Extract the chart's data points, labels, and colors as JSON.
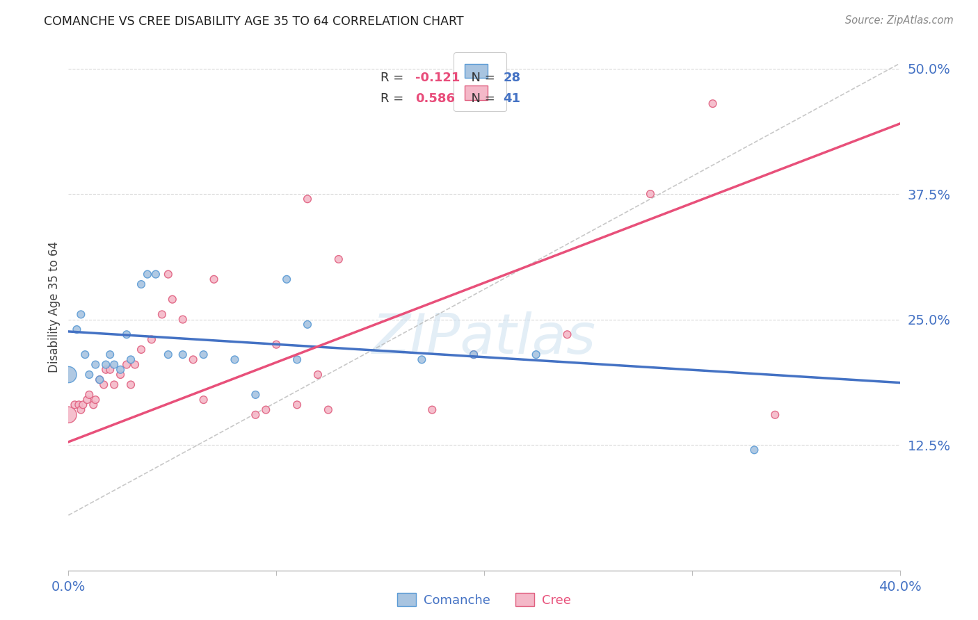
{
  "title": "COMANCHE VS CREE DISABILITY AGE 35 TO 64 CORRELATION CHART",
  "source": "Source: ZipAtlas.com",
  "ylabel_label": "Disability Age 35 to 64",
  "x_min": 0.0,
  "x_max": 0.4,
  "y_min": 0.0,
  "y_max": 0.525,
  "y_ticks": [
    0.125,
    0.25,
    0.375,
    0.5
  ],
  "y_tick_labels": [
    "12.5%",
    "25.0%",
    "37.5%",
    "50.0%"
  ],
  "comanche_color": "#a8c4e0",
  "comanche_edge_color": "#5b9bd5",
  "cree_color": "#f4b8c8",
  "cree_edge_color": "#e06080",
  "comanche_line_color": "#4472c4",
  "cree_line_color": "#e8507a",
  "diag_line_color": "#bbbbbb",
  "R_comanche": -0.121,
  "N_comanche": 28,
  "R_cree": 0.586,
  "N_cree": 41,
  "comanche_line_y0": 0.238,
  "comanche_line_y1": 0.187,
  "cree_line_y0": 0.128,
  "cree_line_y1": 0.445,
  "diag_line_x0": 0.0,
  "diag_line_y0": 0.055,
  "diag_line_x1": 0.4,
  "diag_line_y1": 0.505,
  "comanche_x": [
    0.0,
    0.004,
    0.006,
    0.008,
    0.01,
    0.013,
    0.015,
    0.018,
    0.02,
    0.022,
    0.025,
    0.028,
    0.03,
    0.035,
    0.038,
    0.042,
    0.048,
    0.055,
    0.065,
    0.08,
    0.09,
    0.105,
    0.11,
    0.115,
    0.17,
    0.195,
    0.225,
    0.33
  ],
  "comanche_y": [
    0.195,
    0.24,
    0.255,
    0.215,
    0.195,
    0.205,
    0.19,
    0.205,
    0.215,
    0.205,
    0.2,
    0.235,
    0.21,
    0.285,
    0.295,
    0.295,
    0.215,
    0.215,
    0.215,
    0.21,
    0.175,
    0.29,
    0.21,
    0.245,
    0.21,
    0.215,
    0.215,
    0.12
  ],
  "comanche_sizes": [
    280,
    60,
    60,
    60,
    60,
    60,
    60,
    60,
    60,
    60,
    60,
    60,
    60,
    60,
    60,
    60,
    60,
    60,
    60,
    60,
    60,
    60,
    60,
    60,
    60,
    60,
    60,
    60
  ],
  "cree_x": [
    0.0,
    0.003,
    0.005,
    0.006,
    0.007,
    0.009,
    0.01,
    0.012,
    0.013,
    0.015,
    0.017,
    0.018,
    0.02,
    0.022,
    0.025,
    0.028,
    0.03,
    0.032,
    0.035,
    0.04,
    0.045,
    0.048,
    0.05,
    0.055,
    0.06,
    0.065,
    0.07,
    0.09,
    0.095,
    0.1,
    0.11,
    0.115,
    0.12,
    0.125,
    0.13,
    0.175,
    0.195,
    0.24,
    0.28,
    0.31,
    0.34
  ],
  "cree_y": [
    0.155,
    0.165,
    0.165,
    0.16,
    0.165,
    0.17,
    0.175,
    0.165,
    0.17,
    0.19,
    0.185,
    0.2,
    0.2,
    0.185,
    0.195,
    0.205,
    0.185,
    0.205,
    0.22,
    0.23,
    0.255,
    0.295,
    0.27,
    0.25,
    0.21,
    0.17,
    0.29,
    0.155,
    0.16,
    0.225,
    0.165,
    0.37,
    0.195,
    0.16,
    0.31,
    0.16,
    0.215,
    0.235,
    0.375,
    0.465,
    0.155
  ],
  "cree_sizes": [
    280,
    60,
    60,
    60,
    60,
    60,
    60,
    60,
    60,
    60,
    60,
    60,
    60,
    60,
    60,
    60,
    60,
    60,
    60,
    60,
    60,
    60,
    60,
    60,
    60,
    60,
    60,
    60,
    60,
    60,
    60,
    60,
    60,
    60,
    60,
    60,
    60,
    60,
    60,
    60,
    60
  ],
  "grid_color": "#d5d5d5",
  "background_color": "#ffffff",
  "tick_color": "#4472c4",
  "legend_R_color": "#e84c7a",
  "legend_N_color": "#4472c4"
}
